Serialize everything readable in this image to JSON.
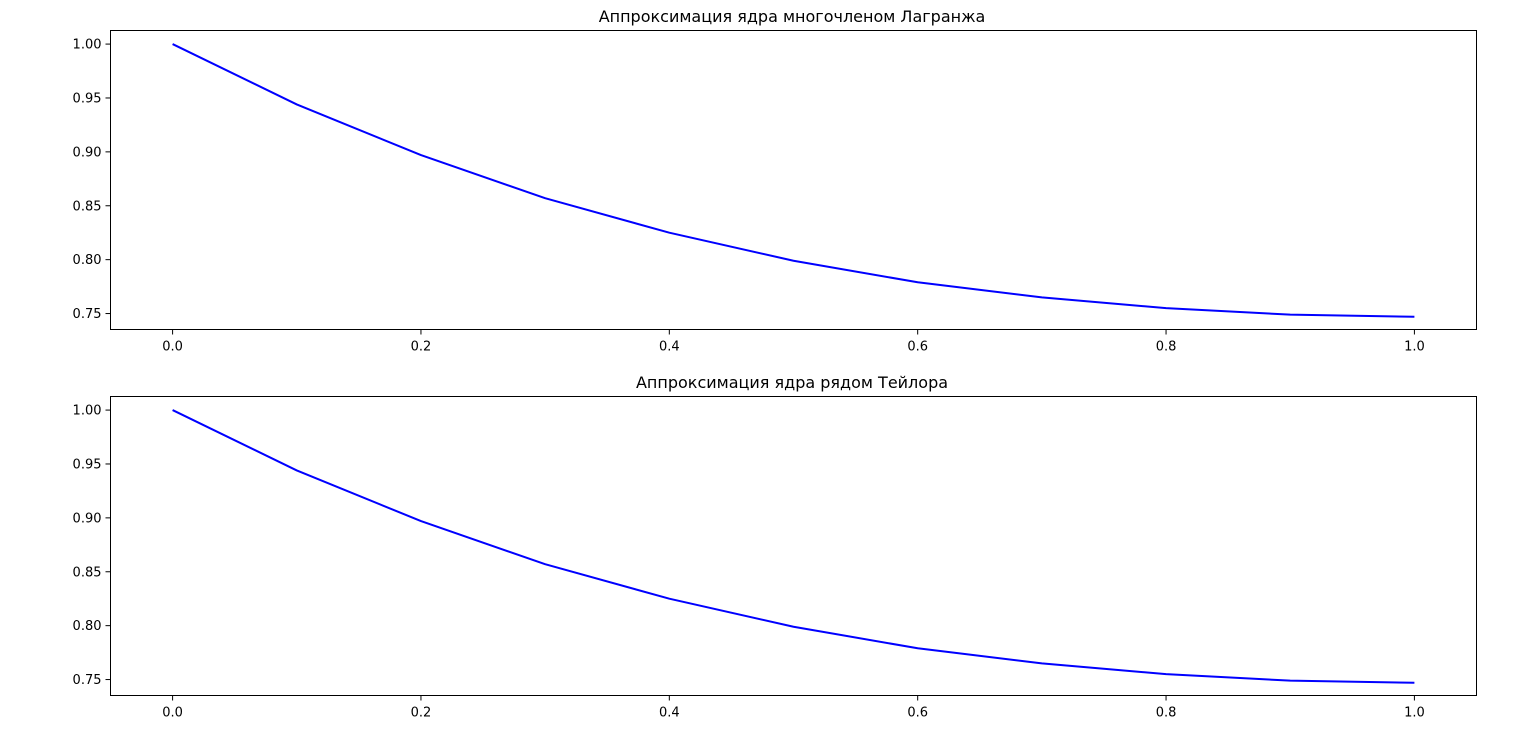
{
  "chart_data": [
    {
      "type": "line",
      "title": "Аппроксимация ядра многочленом Лагранжа",
      "xlabel": "",
      "ylabel": "",
      "xlim": [
        -0.05,
        1.05
      ],
      "ylim": [
        0.7352,
        1.0126
      ],
      "xticks": [
        0.0,
        0.2,
        0.4,
        0.6,
        0.8,
        1.0
      ],
      "xtick_labels": [
        "0.0",
        "0.2",
        "0.4",
        "0.6",
        "0.8",
        "1.0"
      ],
      "yticks": [
        0.75,
        0.8,
        0.85,
        0.9,
        0.95,
        1.0
      ],
      "ytick_labels": [
        "0.75",
        "0.80",
        "0.85",
        "0.90",
        "0.95",
        "1.00"
      ],
      "grid": false,
      "series": [
        {
          "color": "#0000ff",
          "x": [
            0.0,
            0.1,
            0.2,
            0.3,
            0.4,
            0.5,
            0.6,
            0.7,
            0.8,
            0.9,
            1.0
          ],
          "y": [
            1.0,
            0.944,
            0.897,
            0.857,
            0.825,
            0.799,
            0.779,
            0.765,
            0.755,
            0.749,
            0.747
          ]
        }
      ]
    },
    {
      "type": "line",
      "title": "Аппроксимация ядра рядом Тейлора",
      "xlabel": "",
      "ylabel": "",
      "xlim": [
        -0.05,
        1.05
      ],
      "ylim": [
        0.7352,
        1.0126
      ],
      "xticks": [
        0.0,
        0.2,
        0.4,
        0.6,
        0.8,
        1.0
      ],
      "xtick_labels": [
        "0.0",
        "0.2",
        "0.4",
        "0.6",
        "0.8",
        "1.0"
      ],
      "yticks": [
        0.75,
        0.8,
        0.85,
        0.9,
        0.95,
        1.0
      ],
      "ytick_labels": [
        "0.75",
        "0.80",
        "0.85",
        "0.90",
        "0.95",
        "1.00"
      ],
      "grid": false,
      "series": [
        {
          "color": "#0000ff",
          "x": [
            0.0,
            0.1,
            0.2,
            0.3,
            0.4,
            0.5,
            0.6,
            0.7,
            0.8,
            0.9,
            1.0
          ],
          "y": [
            1.0,
            0.944,
            0.897,
            0.857,
            0.825,
            0.799,
            0.779,
            0.765,
            0.755,
            0.749,
            0.747
          ]
        }
      ]
    }
  ]
}
